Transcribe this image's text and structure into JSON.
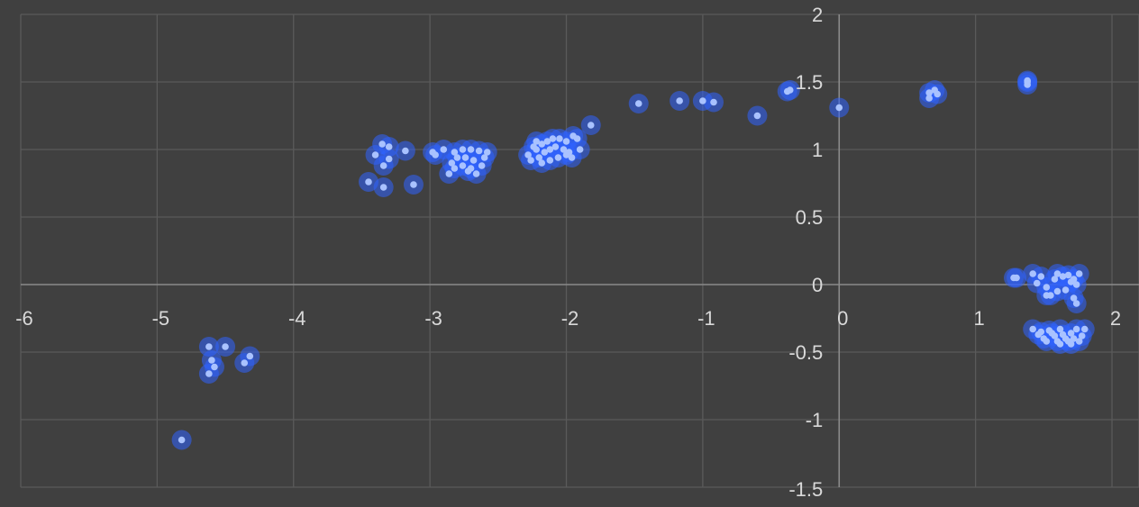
{
  "chart_data": {
    "type": "scatter",
    "title": "",
    "xlabel": "",
    "ylabel": "",
    "xlim": [
      -6,
      2
    ],
    "ylim": [
      -1.5,
      2
    ],
    "x_ticks": [
      -6,
      -5,
      -4,
      -3,
      -2,
      -1,
      0,
      1,
      2
    ],
    "y_ticks": [
      2,
      1.5,
      1,
      0.5,
      0,
      -0.5,
      -1,
      -1.5
    ],
    "x_tick_labels": [
      "-6",
      "-5",
      "-4",
      "-3",
      "-2",
      "-1",
      "0",
      "1",
      "2"
    ],
    "y_tick_labels": [
      "2",
      "1.5",
      "1",
      "0.5",
      "0",
      "-0.5",
      "-1",
      "-1.5"
    ],
    "grid": true,
    "colors": {
      "background": "#404040",
      "grid": "#5a5a5a",
      "axis": "#8a8a8a",
      "point": "#a9c2ff",
      "glow": "#2f63ff",
      "text": "#d9d9d9"
    },
    "series": [
      {
        "points": [
          [
            -4.82,
            -1.15
          ],
          [
            -4.62,
            -0.46
          ],
          [
            -4.5,
            -0.46
          ],
          [
            -4.6,
            -0.56
          ],
          [
            -4.58,
            -0.61
          ],
          [
            -4.62,
            -0.66
          ],
          [
            -4.32,
            -0.53
          ],
          [
            -4.36,
            -0.58
          ],
          [
            -3.45,
            0.76
          ],
          [
            -3.34,
            0.72
          ],
          [
            -3.12,
            0.74
          ],
          [
            -3.35,
            1.04
          ],
          [
            -3.3,
            1.02
          ],
          [
            -3.4,
            0.96
          ],
          [
            -3.3,
            0.93
          ],
          [
            -3.34,
            0.88
          ],
          [
            -3.18,
            0.99
          ],
          [
            -2.98,
            0.98
          ],
          [
            -2.9,
            1.0
          ],
          [
            -2.82,
            0.98
          ],
          [
            -2.76,
            1.0
          ],
          [
            -2.7,
            1.0
          ],
          [
            -2.64,
            0.99
          ],
          [
            -2.58,
            0.98
          ],
          [
            -2.96,
            0.96
          ],
          [
            -2.8,
            0.94
          ],
          [
            -2.74,
            0.94
          ],
          [
            -2.68,
            0.92
          ],
          [
            -2.6,
            0.94
          ],
          [
            -2.84,
            0.9
          ],
          [
            -2.76,
            0.88
          ],
          [
            -2.7,
            0.86
          ],
          [
            -2.62,
            0.88
          ],
          [
            -2.82,
            0.86
          ],
          [
            -2.72,
            0.84
          ],
          [
            -2.66,
            0.82
          ],
          [
            -2.86,
            0.82
          ],
          [
            -2.28,
            0.96
          ],
          [
            -2.22,
            1.0
          ],
          [
            -2.18,
            1.04
          ],
          [
            -2.14,
            1.06
          ],
          [
            -2.1,
            1.08
          ],
          [
            -2.05,
            1.08
          ],
          [
            -2.0,
            1.06
          ],
          [
            -1.95,
            1.1
          ],
          [
            -1.92,
            1.08
          ],
          [
            -2.26,
            0.92
          ],
          [
            -2.2,
            0.94
          ],
          [
            -2.16,
            0.98
          ],
          [
            -2.12,
            1.0
          ],
          [
            -2.08,
            1.02
          ],
          [
            -2.02,
            1.0
          ],
          [
            -1.98,
            0.98
          ],
          [
            -1.9,
            1.0
          ],
          [
            -2.24,
            1.02
          ],
          [
            -2.18,
            0.9
          ],
          [
            -2.12,
            0.92
          ],
          [
            -2.06,
            0.94
          ],
          [
            -2.0,
            0.96
          ],
          [
            -1.96,
            0.94
          ],
          [
            -2.22,
            1.06
          ],
          [
            -1.82,
            1.18
          ],
          [
            -1.47,
            1.34
          ],
          [
            -1.17,
            1.36
          ],
          [
            -1.0,
            1.36
          ],
          [
            -0.92,
            1.35
          ],
          [
            -0.6,
            1.25
          ],
          [
            -0.38,
            1.43
          ],
          [
            -0.36,
            1.44
          ],
          [
            0.0,
            1.31
          ],
          [
            0.66,
            1.42
          ],
          [
            0.7,
            1.44
          ],
          [
            0.66,
            1.38
          ],
          [
            0.72,
            1.41
          ],
          [
            1.38,
            1.5
          ],
          [
            1.38,
            1.48
          ],
          [
            1.38,
            1.51
          ],
          [
            1.28,
            0.05
          ],
          [
            1.3,
            0.05
          ],
          [
            1.42,
            0.08
          ],
          [
            1.48,
            0.06
          ],
          [
            1.45,
            0.01
          ],
          [
            1.52,
            -0.02
          ],
          [
            1.58,
            0.04
          ],
          [
            1.6,
            0.08
          ],
          [
            1.64,
            0.06
          ],
          [
            1.68,
            0.07
          ],
          [
            1.72,
            0.04
          ],
          [
            1.76,
            0.08
          ],
          [
            1.7,
            0.02
          ],
          [
            1.74,
            0.0
          ],
          [
            1.66,
            -0.04
          ],
          [
            1.6,
            -0.05
          ],
          [
            1.52,
            -0.08
          ],
          [
            1.55,
            -0.08
          ],
          [
            1.72,
            -0.1
          ],
          [
            1.74,
            -0.14
          ],
          [
            1.42,
            -0.33
          ],
          [
            1.46,
            -0.37
          ],
          [
            1.5,
            -0.4
          ],
          [
            1.54,
            -0.34
          ],
          [
            1.58,
            -0.38
          ],
          [
            1.62,
            -0.33
          ],
          [
            1.66,
            -0.4
          ],
          [
            1.7,
            -0.36
          ],
          [
            1.74,
            -0.33
          ],
          [
            1.78,
            -0.38
          ],
          [
            1.52,
            -0.42
          ],
          [
            1.6,
            -0.42
          ],
          [
            1.68,
            -0.42
          ],
          [
            1.76,
            -0.42
          ],
          [
            1.56,
            -0.36
          ],
          [
            1.64,
            -0.37
          ],
          [
            1.72,
            -0.4
          ],
          [
            1.8,
            -0.33
          ],
          [
            1.48,
            -0.35
          ],
          [
            1.62,
            -0.44
          ],
          [
            1.7,
            -0.44
          ]
        ]
      }
    ]
  }
}
